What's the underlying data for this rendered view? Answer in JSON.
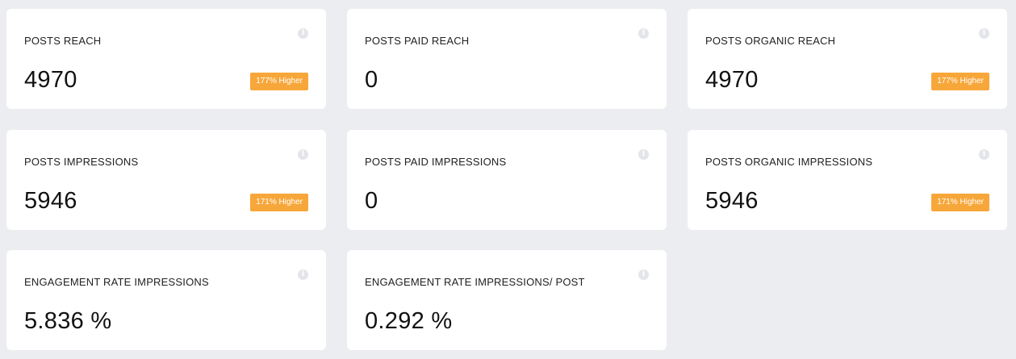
{
  "colors": {
    "background": "#ebedf1",
    "card": "#ffffff",
    "badge": "#f7a73a",
    "info_icon": "#e3e5ea"
  },
  "cards": [
    {
      "title": "POSTS REACH",
      "value": "4970",
      "badge": "177% Higher",
      "icon": "info-icon"
    },
    {
      "title": "POSTS PAID REACH",
      "value": "0",
      "badge": null,
      "icon": "info-icon"
    },
    {
      "title": "POSTS ORGANIC REACH",
      "value": "4970",
      "badge": "177% Higher",
      "icon": "info-icon"
    },
    {
      "title": "POSTS IMPRESSIONS",
      "value": "5946",
      "badge": "171% Higher",
      "icon": "info-icon"
    },
    {
      "title": "POSTS PAID IMPRESSIONS",
      "value": "0",
      "badge": null,
      "icon": "info-icon"
    },
    {
      "title": "POSTS ORGANIC IMPRESSIONS",
      "value": "5946",
      "badge": "171% Higher",
      "icon": "info-icon"
    },
    {
      "title": "ENGAGEMENT RATE IMPRESSIONS",
      "value": "5.836 %",
      "badge": null,
      "icon": "info-icon"
    },
    {
      "title": "ENGAGEMENT RATE IMPRESSIONS/ POST",
      "value": "0.292 %",
      "badge": null,
      "icon": "info-icon"
    }
  ]
}
